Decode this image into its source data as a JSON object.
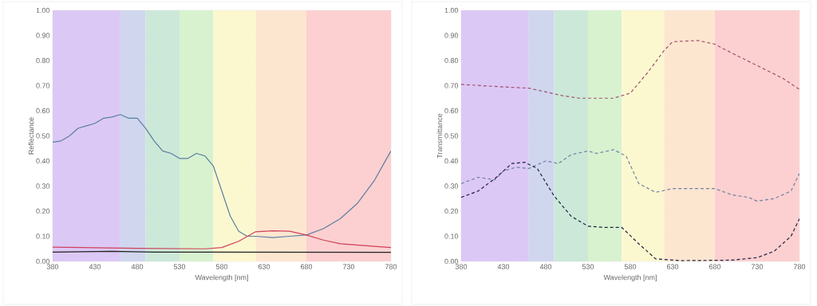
{
  "chart_data": [
    {
      "type": "line",
      "xlabel": "Wavelength [nm]",
      "ylabel": "Reflectance",
      "xlim": [
        380,
        780
      ],
      "ylim": [
        0,
        1
      ],
      "xticks": [
        380,
        430,
        480,
        530,
        580,
        630,
        680,
        730,
        780
      ],
      "yticks": [
        {
          "value": 0,
          "label": "0.00"
        },
        {
          "value": 0.1,
          "label": "0.10"
        },
        {
          "value": 0.2,
          "label": "0.20"
        },
        {
          "value": 0.3,
          "label": "0.30"
        },
        {
          "value": 0.4,
          "label": "0.40"
        },
        {
          "value": 0.5,
          "label": "0.50"
        },
        {
          "value": 0.6,
          "label": "0.60"
        },
        {
          "value": 0.7,
          "label": "0.70"
        },
        {
          "value": 0.8,
          "label": "0.80"
        },
        {
          "value": 0.9,
          "label": "0.90"
        },
        {
          "value": 1,
          "label": "1.00"
        }
      ],
      "grid": true,
      "marker": "none",
      "line_style": "solid",
      "bands": [
        {
          "axis": "x",
          "from": 380,
          "to": 460,
          "color": "#dcc8f5"
        },
        {
          "axis": "x",
          "from": 460,
          "to": 490,
          "color": "#cfd6ee"
        },
        {
          "axis": "x",
          "from": 490,
          "to": 530,
          "color": "#cce8d8"
        },
        {
          "axis": "x",
          "from": 530,
          "to": 570,
          "color": "#d8f2d0"
        },
        {
          "axis": "x",
          "from": 570,
          "to": 620,
          "color": "#fbf8d0"
        },
        {
          "axis": "x",
          "from": 620,
          "to": 680,
          "color": "#fde6d0"
        },
        {
          "axis": "x",
          "from": 680,
          "to": 780,
          "color": "#fcd0d0"
        }
      ],
      "series": [
        {
          "color": "#5a7fa0",
          "x": [
            380,
            390,
            400,
            410,
            420,
            430,
            440,
            450,
            460,
            470,
            480,
            490,
            500,
            510,
            520,
            530,
            540,
            550,
            560,
            570,
            580,
            590,
            600,
            610,
            620,
            640,
            660,
            680,
            700,
            720,
            740,
            760,
            780
          ],
          "values": [
            0.475,
            0.48,
            0.5,
            0.53,
            0.54,
            0.55,
            0.57,
            0.575,
            0.585,
            0.57,
            0.57,
            0.53,
            0.48,
            0.44,
            0.43,
            0.41,
            0.41,
            0.43,
            0.42,
            0.38,
            0.28,
            0.18,
            0.12,
            0.1,
            0.1,
            0.095,
            0.1,
            0.105,
            0.13,
            0.17,
            0.23,
            0.32,
            0.44
          ]
        },
        {
          "color": "#d0405a",
          "x": [
            380,
            480,
            560,
            580,
            600,
            620,
            640,
            660,
            680,
            700,
            720,
            740,
            760,
            780
          ],
          "values": [
            0.057,
            0.052,
            0.05,
            0.055,
            0.08,
            0.118,
            0.122,
            0.12,
            0.105,
            0.085,
            0.07,
            0.065,
            0.06,
            0.055
          ]
        },
        {
          "color": "#202020",
          "x": [
            380,
            450,
            500,
            780
          ],
          "values": [
            0.037,
            0.04,
            0.037,
            0.036
          ]
        }
      ]
    },
    {
      "type": "line",
      "xlabel": "Wavelength [nm]",
      "ylabel": "Transmittance",
      "xlim": [
        380,
        780
      ],
      "ylim": [
        0,
        1
      ],
      "xticks": [
        380,
        430,
        480,
        530,
        580,
        630,
        680,
        730,
        780
      ],
      "yticks": [
        {
          "value": 0,
          "label": "0.00"
        },
        {
          "value": 0.1,
          "label": "0.10"
        },
        {
          "value": 0.2,
          "label": "0.20"
        },
        {
          "value": 0.3,
          "label": "0.30"
        },
        {
          "value": 0.4,
          "label": "0.40"
        },
        {
          "value": 0.5,
          "label": "0.50"
        },
        {
          "value": 0.6,
          "label": "0.60"
        },
        {
          "value": 0.7,
          "label": "0.70"
        },
        {
          "value": 0.8,
          "label": "0.80"
        },
        {
          "value": 0.9,
          "label": "0.90"
        },
        {
          "value": 1,
          "label": "1.00"
        }
      ],
      "grid": true,
      "marker": "none",
      "line_style": "dashed",
      "bands": [
        {
          "axis": "x",
          "from": 380,
          "to": 460,
          "color": "#dcc8f5"
        },
        {
          "axis": "x",
          "from": 460,
          "to": 490,
          "color": "#cfd6ee"
        },
        {
          "axis": "x",
          "from": 490,
          "to": 530,
          "color": "#cce8d8"
        },
        {
          "axis": "x",
          "from": 530,
          "to": 570,
          "color": "#d8f2d0"
        },
        {
          "axis": "x",
          "from": 570,
          "to": 620,
          "color": "#fbf8d0"
        },
        {
          "axis": "x",
          "from": 620,
          "to": 680,
          "color": "#fde6d0"
        },
        {
          "axis": "x",
          "from": 680,
          "to": 780,
          "color": "#fcd0d0"
        }
      ],
      "series": [
        {
          "color": "#a05070",
          "x": [
            380,
            430,
            460,
            480,
            500,
            520,
            560,
            580,
            600,
            620,
            630,
            660,
            680,
            700,
            730,
            760,
            780
          ],
          "values": [
            0.705,
            0.695,
            0.69,
            0.675,
            0.66,
            0.65,
            0.65,
            0.67,
            0.75,
            0.84,
            0.875,
            0.88,
            0.865,
            0.83,
            0.78,
            0.73,
            0.685
          ]
        },
        {
          "color": "#7080a0",
          "x": [
            380,
            400,
            420,
            430,
            445,
            460,
            480,
            495,
            510,
            530,
            540,
            560,
            575,
            590,
            610,
            630,
            650,
            680,
            700,
            720,
            730,
            750,
            770,
            780
          ],
          "values": [
            0.31,
            0.335,
            0.325,
            0.36,
            0.375,
            0.37,
            0.4,
            0.39,
            0.425,
            0.44,
            0.43,
            0.445,
            0.42,
            0.31,
            0.275,
            0.29,
            0.29,
            0.29,
            0.265,
            0.255,
            0.24,
            0.25,
            0.28,
            0.35
          ]
        },
        {
          "color": "#202040",
          "x": [
            380,
            400,
            420,
            440,
            455,
            470,
            490,
            510,
            530,
            550,
            570,
            590,
            610,
            640,
            700,
            730,
            750,
            770,
            780
          ],
          "values": [
            0.255,
            0.28,
            0.33,
            0.39,
            0.395,
            0.37,
            0.26,
            0.18,
            0.14,
            0.135,
            0.135,
            0.07,
            0.01,
            0.003,
            0.005,
            0.015,
            0.04,
            0.1,
            0.17
          ]
        }
      ]
    }
  ]
}
